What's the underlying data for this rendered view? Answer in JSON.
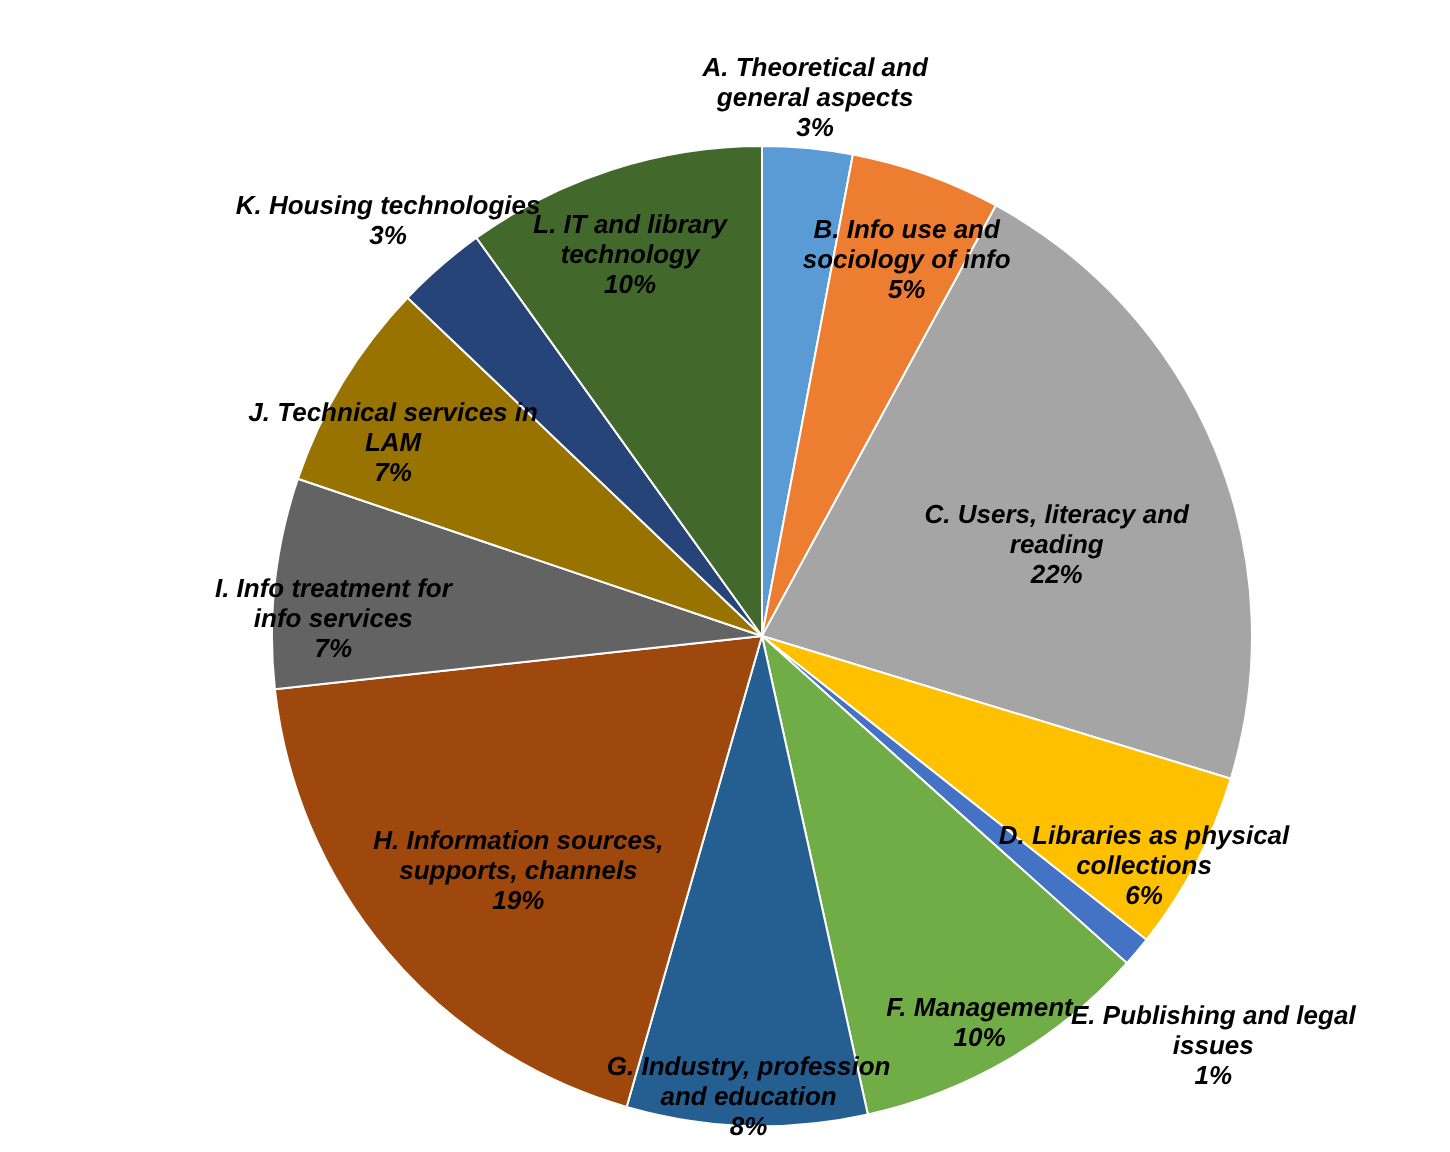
{
  "chart_data": {
    "type": "pie",
    "categories": [
      "A. Theoretical and general aspects",
      "B. Info use and sociology of info",
      "C. Users, literacy and reading",
      "D. Libraries as physical collections",
      "E. Publishing and legal issues",
      "F. Management",
      "G. Industry, profession and education",
      "H. Information sources, supports, channels",
      "I. Info treatment for info services",
      "J. Technical services in LAM",
      "K. Housing technologies",
      "L. IT and library technology"
    ],
    "values": [
      3,
      5,
      22,
      6,
      1,
      10,
      8,
      19,
      7,
      7,
      3,
      10
    ],
    "colors": [
      "#5b9bd5",
      "#ed7d31",
      "#a5a5a5",
      "#ffc000",
      "#4472c4",
      "#70ad47",
      "#255e91",
      "#9e480e",
      "#636363",
      "#997300",
      "#264478",
      "#43682b"
    ],
    "value_labels": [
      "3%",
      "5%",
      "22%",
      "6%",
      "1%",
      "10%",
      "8%",
      "19%",
      "7%",
      "7%",
      "3%",
      "10%"
    ]
  }
}
